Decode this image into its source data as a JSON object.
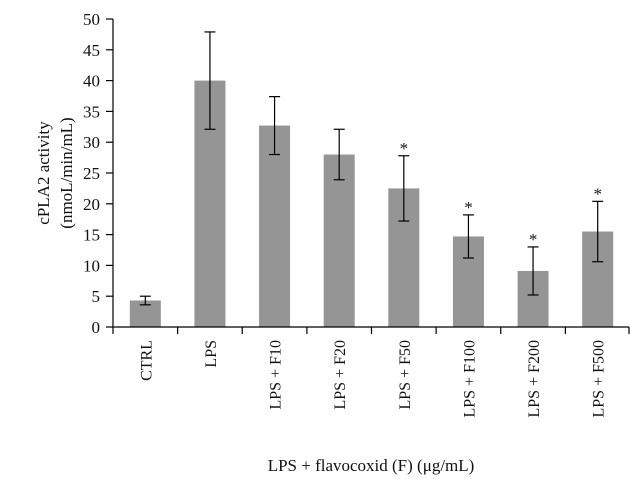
{
  "chart_data": {
    "type": "bar",
    "categories": [
      "CTRL",
      "LPS",
      "LPS + F10",
      "LPS + F20",
      "LPS + F50",
      "LPS + F100",
      "LPS + F200",
      "LPS + F500"
    ],
    "values": [
      4.3,
      40.0,
      32.7,
      28.0,
      22.5,
      14.7,
      9.1,
      15.5
    ],
    "errors": [
      0.7,
      7.9,
      4.7,
      4.1,
      5.3,
      3.5,
      3.9,
      4.9
    ],
    "significance": [
      "",
      "",
      "",
      "",
      "*",
      "*",
      "*",
      "*"
    ],
    "ylabel_line1": "cPLA2 activity",
    "ylabel_line2": "(nmoL/min/mL)",
    "xlabel": "LPS + flavocoxid (F) (μg/mL)",
    "ylim": [
      0,
      50
    ],
    "yticks": [
      "0",
      "5",
      "10",
      "15",
      "20",
      "25",
      "30",
      "35",
      "40",
      "45",
      "50"
    ],
    "bar_color": "#959595",
    "grid": false,
    "legend": "none"
  }
}
